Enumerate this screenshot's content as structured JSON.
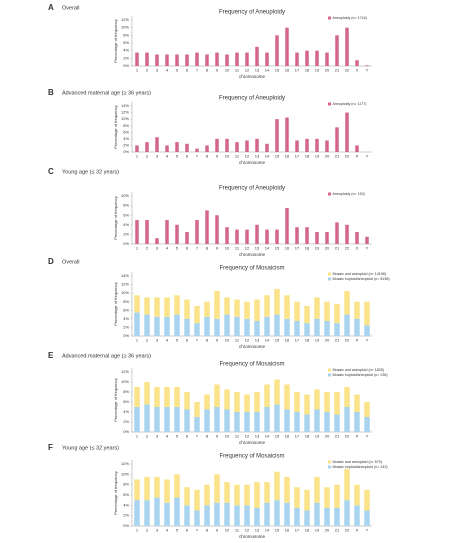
{
  "chart_data": [
    {
      "type": "bar",
      "panel": "A",
      "subtitle": "Overall",
      "title": "Frequency of Aneuploidy",
      "x_label": "chromosome",
      "y_label": "Percentage of frequency",
      "legend": "top-right",
      "grid": false,
      "categories": [
        "1",
        "2",
        "3",
        "4",
        "5",
        "6",
        "7",
        "8",
        "9",
        "10",
        "11",
        "12",
        "13",
        "14",
        "15",
        "16",
        "17",
        "18",
        "19",
        "20",
        "21",
        "22",
        "X",
        "Y"
      ],
      "series": [
        {
          "name": "Aneuploidy (n= 1716)",
          "color": "#d4668b",
          "values": [
            3.5,
            3.5,
            3,
            3,
            3,
            3,
            3.5,
            3,
            3.5,
            3,
            3.5,
            3.5,
            5,
            3.5,
            8,
            10,
            3.5,
            4,
            4,
            3.5,
            8,
            10,
            1.5,
            0.2
          ]
        }
      ],
      "ylim": [
        0,
        12
      ],
      "yticks": [
        {
          "value": 0,
          "label": "0%"
        },
        {
          "value": 2,
          "label": "2%"
        },
        {
          "value": 4,
          "label": "4%"
        },
        {
          "value": 6,
          "label": "6%"
        },
        {
          "value": 8,
          "label": "8%"
        },
        {
          "value": 10,
          "label": "10%"
        },
        {
          "value": 12,
          "label": "12%"
        }
      ]
    },
    {
      "type": "bar",
      "panel": "B",
      "subtitle": "Advanced maternal age (≥ 36 years)",
      "title": "Frequency of Aneuploidy",
      "x_label": "chromosome",
      "y_label": "Percentage of frequency",
      "legend": "top-right",
      "grid": false,
      "categories": [
        "1",
        "2",
        "3",
        "4",
        "5",
        "6",
        "7",
        "8",
        "9",
        "10",
        "11",
        "12",
        "13",
        "14",
        "15",
        "16",
        "17",
        "18",
        "19",
        "20",
        "21",
        "22",
        "X",
        "Y"
      ],
      "series": [
        {
          "name": "Aneuploidy (n= 1177)",
          "color": "#d4668b",
          "values": [
            2,
            3,
            4.5,
            2,
            3,
            2.5,
            1,
            2,
            4,
            4,
            3,
            3.5,
            4,
            2.5,
            10,
            10.5,
            3.5,
            4,
            4,
            3.5,
            7.5,
            12,
            2,
            0
          ]
        }
      ],
      "ylim": [
        0,
        14
      ],
      "yticks": [
        {
          "value": 0,
          "label": "0%"
        },
        {
          "value": 2,
          "label": "2%"
        },
        {
          "value": 4,
          "label": "4%"
        },
        {
          "value": 6,
          "label": "6%"
        },
        {
          "value": 8,
          "label": "8%"
        },
        {
          "value": 10,
          "label": "10%"
        },
        {
          "value": 12,
          "label": "12%"
        },
        {
          "value": 14,
          "label": "14%"
        }
      ]
    },
    {
      "type": "bar",
      "panel": "C",
      "subtitle": "Young age (≤ 32 years)",
      "title": "Frequency of Aneuploidy",
      "x_label": "chromosome",
      "y_label": "Percentage of frequency",
      "legend": "top-right",
      "grid": false,
      "categories": [
        "1",
        "2",
        "3",
        "4",
        "5",
        "6",
        "7",
        "8",
        "9",
        "10",
        "11",
        "12",
        "13",
        "14",
        "15",
        "16",
        "17",
        "18",
        "19",
        "20",
        "21",
        "22",
        "X",
        "Y"
      ],
      "series": [
        {
          "name": "Aneuploidy (n= 153)",
          "color": "#d4668b",
          "values": [
            5,
            5,
            1.2,
            5,
            4,
            2.5,
            5,
            7,
            6,
            3.5,
            3,
            3,
            4,
            3,
            3,
            7.5,
            3.5,
            3.5,
            2.5,
            2.5,
            4.5,
            4,
            2.5,
            1.5
          ]
        }
      ],
      "ylim": [
        0,
        10
      ],
      "yticks": [
        {
          "value": 0,
          "label": "0%"
        },
        {
          "value": 2,
          "label": "2%"
        },
        {
          "value": 4,
          "label": "4%"
        },
        {
          "value": 6,
          "label": "6%"
        },
        {
          "value": 8,
          "label": "8%"
        },
        {
          "value": 10,
          "label": "10%"
        }
      ]
    },
    {
      "type": "stacked_bar",
      "panel": "D",
      "subtitle": "Overall",
      "title": "Frequency of Mosaicism",
      "x_label": "chromosome",
      "y_label": "Percentage of frequency",
      "legend": "top-right",
      "grid": false,
      "categories": [
        "1",
        "2",
        "3",
        "4",
        "5",
        "6",
        "7",
        "8",
        "9",
        "10",
        "11",
        "12",
        "13",
        "14",
        "15",
        "16",
        "17",
        "18",
        "19",
        "20",
        "21",
        "22",
        "X",
        "Y"
      ],
      "series": [
        {
          "name": "Mosaic euploid/aneuploid (n= 8198)",
          "color": "#a9d4f0",
          "values": [
            5.5,
            5,
            4.5,
            4.5,
            5,
            4,
            3,
            4.5,
            4,
            5,
            4.5,
            4,
            3.5,
            4.5,
            5,
            4,
            3.5,
            3,
            4,
            3.5,
            3,
            5,
            4,
            2.5
          ]
        },
        {
          "name": "Mosaic and aneuploid (n= 14198)",
          "color": "#fbe38a",
          "values": [
            4,
            4,
            4.5,
            4.5,
            4.5,
            4.5,
            4,
            3.5,
            6.5,
            4,
            4,
            4,
            5,
            5,
            6,
            5.5,
            4.5,
            4,
            5,
            4.5,
            4.5,
            5.5,
            4,
            5.5
          ]
        }
      ],
      "ylim": [
        0,
        14
      ],
      "yticks": [
        {
          "value": 0,
          "label": "0%"
        },
        {
          "value": 2,
          "label": "2%"
        },
        {
          "value": 4,
          "label": "4%"
        },
        {
          "value": 6,
          "label": "6%"
        },
        {
          "value": 8,
          "label": "8%"
        },
        {
          "value": 10,
          "label": "10%"
        },
        {
          "value": 12,
          "label": "12%"
        },
        {
          "value": 14,
          "label": "14%"
        }
      ]
    },
    {
      "type": "stacked_bar",
      "panel": "E",
      "subtitle": "Advanced maternal age (≥ 36 years)",
      "title": "Frequency of Mosaicism",
      "x_label": "chromosome",
      "y_label": "Percentage of frequency",
      "legend": "top-right",
      "grid": false,
      "categories": [
        "1",
        "2",
        "3",
        "4",
        "5",
        "6",
        "7",
        "8",
        "9",
        "10",
        "11",
        "12",
        "13",
        "14",
        "15",
        "16",
        "17",
        "18",
        "19",
        "20",
        "21",
        "22",
        "X",
        "Y"
      ],
      "series": [
        {
          "name": "Mosaic euploid/aneuploid (n= 236)",
          "color": "#a9d4f0",
          "values": [
            5,
            5.5,
            5,
            5,
            5,
            4.5,
            3,
            4.5,
            5,
            4.5,
            4,
            4,
            4,
            5,
            5.5,
            4.5,
            4,
            3.5,
            4.5,
            4,
            3.5,
            5,
            4,
            3
          ]
        },
        {
          "name": "Mosaic and aneuploid (n= 1835)",
          "color": "#fbe38a",
          "values": [
            4,
            4.5,
            4,
            4,
            4,
            3.5,
            3,
            3,
            4.5,
            4,
            4,
            3.5,
            4,
            4.5,
            5,
            5,
            4,
            4,
            4,
            4,
            4.5,
            4,
            3.5,
            3
          ]
        }
      ],
      "ylim": [
        0,
        12
      ],
      "yticks": [
        {
          "value": 0,
          "label": "0%"
        },
        {
          "value": 2,
          "label": "2%"
        },
        {
          "value": 4,
          "label": "4%"
        },
        {
          "value": 6,
          "label": "6%"
        },
        {
          "value": 8,
          "label": "8%"
        },
        {
          "value": 10,
          "label": "10%"
        },
        {
          "value": 12,
          "label": "12%"
        }
      ]
    },
    {
      "type": "stacked_bar",
      "panel": "F",
      "subtitle": "Young age (≤ 32 years)",
      "title": "Frequency of Mosaicism",
      "x_label": "chromosome",
      "y_label": "Percentage of frequency",
      "legend": "top-right",
      "grid": false,
      "categories": [
        "1",
        "2",
        "3",
        "4",
        "5",
        "6",
        "7",
        "8",
        "9",
        "10",
        "11",
        "12",
        "13",
        "14",
        "15",
        "16",
        "17",
        "18",
        "19",
        "20",
        "21",
        "22",
        "X",
        "Y"
      ],
      "series": [
        {
          "name": "Mosaic euploid/aneuploid (n= 243)",
          "color": "#a9d4f0",
          "values": [
            5,
            5,
            5.5,
            4.5,
            5.5,
            4,
            3,
            4,
            4.5,
            4.5,
            4,
            4,
            3.5,
            4.5,
            5,
            4.5,
            3.5,
            3,
            4.5,
            3.5,
            3.5,
            5,
            4,
            3
          ]
        },
        {
          "name": "Mosaic and aneuploid (n= 579)",
          "color": "#fbe38a",
          "values": [
            4,
            4.5,
            4,
            4.5,
            4.5,
            3.5,
            4,
            4,
            5.5,
            4,
            4,
            4,
            5,
            4,
            5.5,
            5,
            4,
            4,
            5,
            4,
            4.5,
            6,
            4,
            4
          ]
        }
      ],
      "ylim": [
        0,
        12
      ],
      "yticks": [
        {
          "value": 0,
          "label": "0%"
        },
        {
          "value": 2,
          "label": "2%"
        },
        {
          "value": 4,
          "label": "4%"
        },
        {
          "value": 6,
          "label": "6%"
        },
        {
          "value": 8,
          "label": "8%"
        },
        {
          "value": 10,
          "label": "10%"
        },
        {
          "value": 12,
          "label": "12%"
        }
      ]
    }
  ]
}
